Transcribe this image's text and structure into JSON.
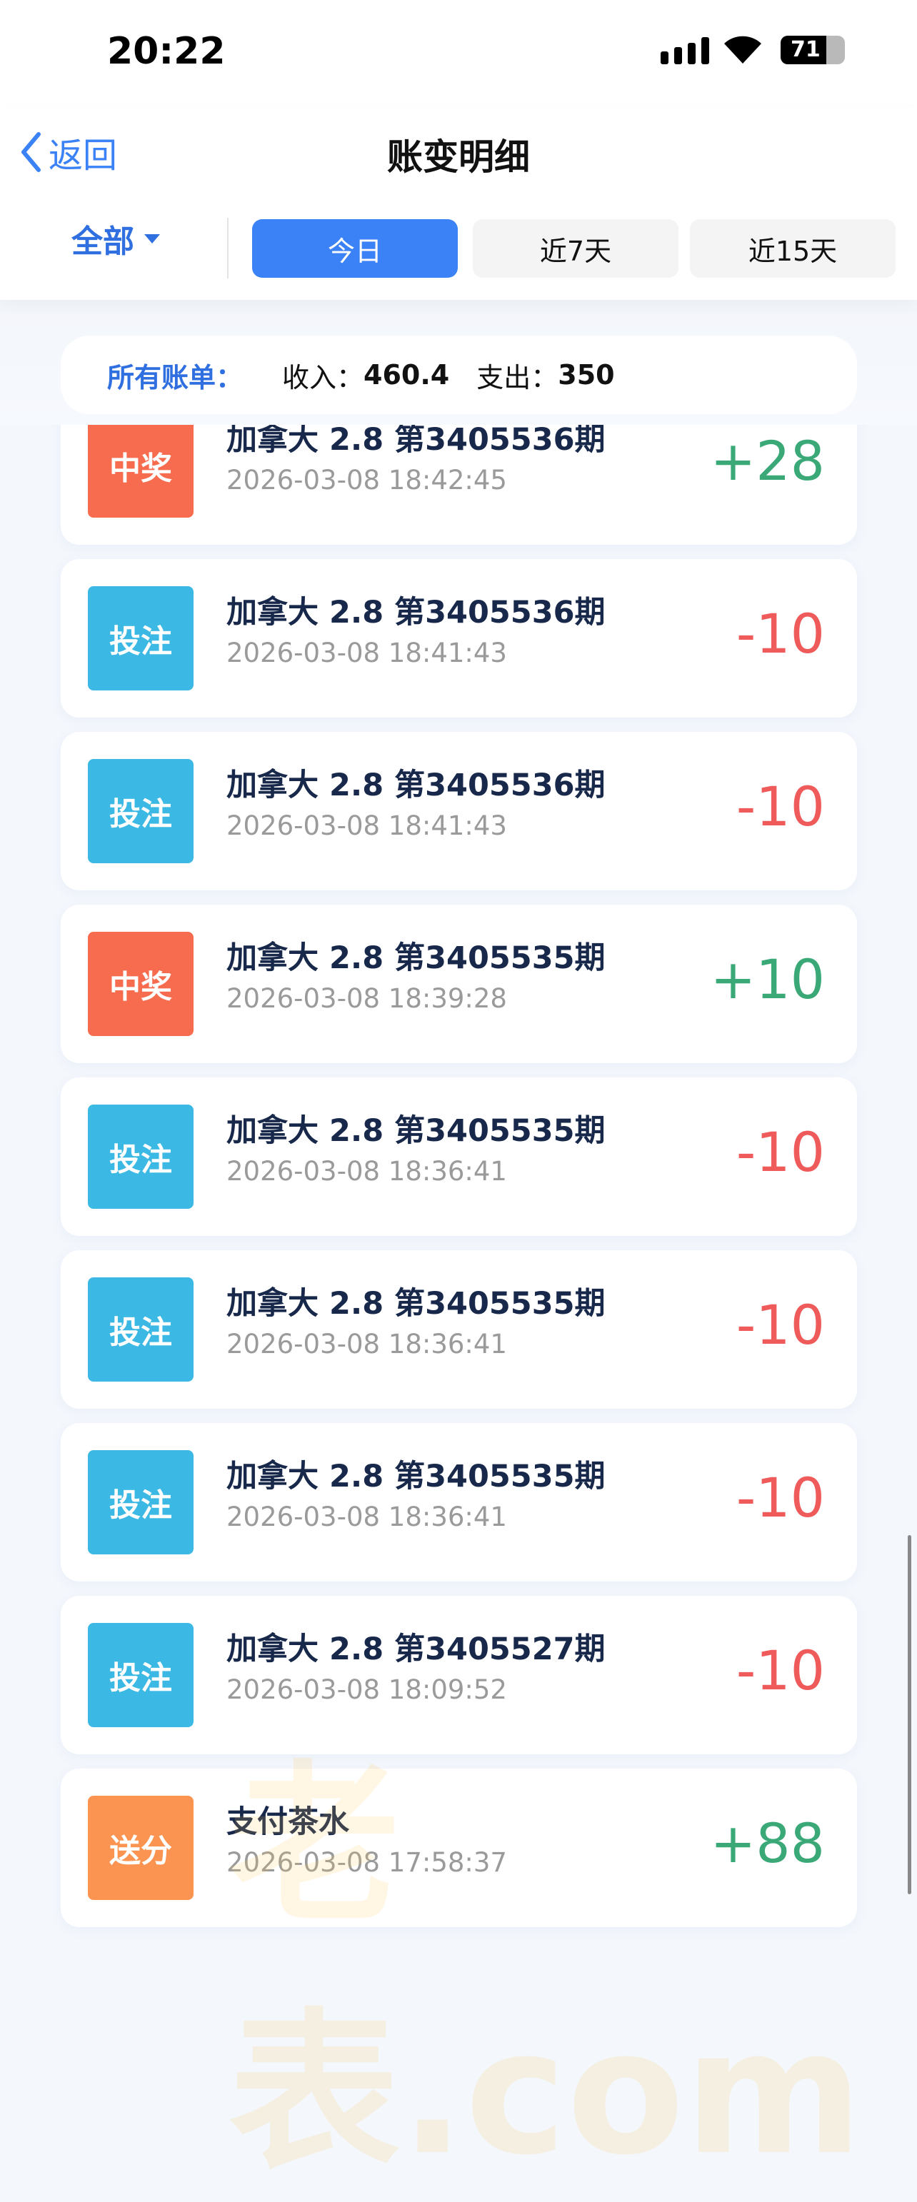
{
  "status_bar": {
    "time": "20:22",
    "battery": "71",
    "battery_level": 71
  },
  "nav": {
    "back_label": "返回",
    "title": "账变明细"
  },
  "filter": {
    "type_label": "全部",
    "tabs": [
      {
        "label": "今日",
        "active": true
      },
      {
        "label": "近7天",
        "active": false
      },
      {
        "label": "近15天",
        "active": false
      }
    ]
  },
  "summary": {
    "label": "所有账单：",
    "income_label": "收入：",
    "income": "460.4",
    "expense_label": "支出：",
    "expense": "350"
  },
  "colors": {
    "accent": "#3b82f6",
    "win": "#f76b4f",
    "bet": "#3bb8e3",
    "gift": "#fb9450",
    "positive": "#3aa877",
    "negative": "#ef5a5a"
  },
  "items": [
    {
      "badge": "中奖",
      "type": "win",
      "title": "加拿大 2.8 第3405536期",
      "time": "2026-03-08 18:42:45",
      "amount": "+28"
    },
    {
      "badge": "投注",
      "type": "bet",
      "title": "加拿大 2.8 第3405536期",
      "time": "2026-03-08 18:41:43",
      "amount": "-10"
    },
    {
      "badge": "投注",
      "type": "bet",
      "title": "加拿大 2.8 第3405536期",
      "time": "2026-03-08 18:41:43",
      "amount": "-10"
    },
    {
      "badge": "中奖",
      "type": "win",
      "title": "加拿大 2.8 第3405535期",
      "time": "2026-03-08 18:39:28",
      "amount": "+10"
    },
    {
      "badge": "投注",
      "type": "bet",
      "title": "加拿大 2.8 第3405535期",
      "time": "2026-03-08 18:36:41",
      "amount": "-10"
    },
    {
      "badge": "投注",
      "type": "bet",
      "title": "加拿大 2.8 第3405535期",
      "time": "2026-03-08 18:36:41",
      "amount": "-10"
    },
    {
      "badge": "投注",
      "type": "bet",
      "title": "加拿大 2.8 第3405535期",
      "time": "2026-03-08 18:36:41",
      "amount": "-10"
    },
    {
      "badge": "投注",
      "type": "bet",
      "title": "加拿大 2.8 第3405527期",
      "time": "2026-03-08 18:09:52",
      "amount": "-10"
    },
    {
      "badge": "送分",
      "type": "gift",
      "title": "支付茶水",
      "time": "2026-03-08 17:58:37",
      "amount": "+88"
    }
  ],
  "watermark": "老表.com"
}
